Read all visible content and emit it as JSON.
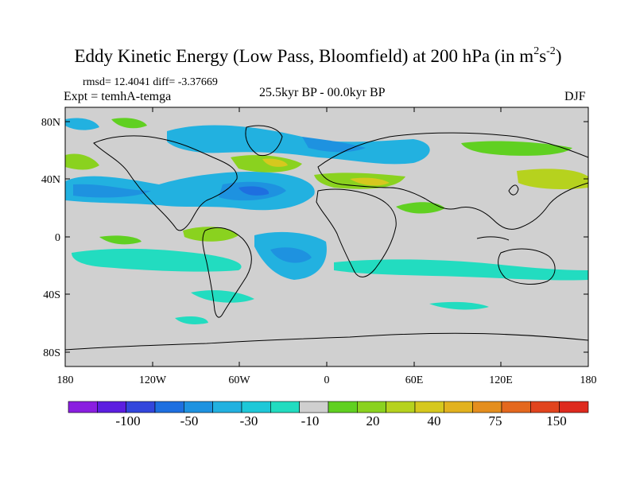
{
  "title": {
    "main": "Eddy Kinetic Energy (Low Pass, Bloomfield) at 200 hPa (in m",
    "unit_m_exp": "2",
    "unit_s": "s",
    "unit_s_exp": "-2",
    "close": ")"
  },
  "stats": "rmsd= 12.4041 diff= -3.37669",
  "experiment": "Expt = temhA-temga",
  "period": "25.5kyr BP - 00.0kyr BP",
  "season": "DJF",
  "map_data": {
    "y_axis_labels": [
      "80N",
      "40N",
      "0",
      "40S",
      "80S"
    ],
    "x_axis_labels": [
      "180",
      "120W",
      "60W",
      "0",
      "60E",
      "120E",
      "180"
    ],
    "background_color": "#d0d0d0",
    "colorbar": {
      "colors": [
        "#8a1fe0",
        "#5c1ee0",
        "#3346dc",
        "#1e6fe0",
        "#1e92e0",
        "#22b1e0",
        "#1ec8d8",
        "#22dcc0",
        "#cfcfcf",
        "#60d021",
        "#8ad21f",
        "#b6d21e",
        "#d6c81e",
        "#e2b21f",
        "#e48e1e",
        "#e4681e",
        "#e1441e",
        "#de2a1e"
      ],
      "labels": [
        "-100",
        "-50",
        "-30",
        "-10",
        "20",
        "40",
        "75",
        "150"
      ]
    },
    "regions": [
      {
        "label": "north-atlantic-negative",
        "color": "#22b1e0"
      },
      {
        "label": "north-atlantic-core",
        "color": "#1e92e0"
      },
      {
        "label": "north-pacific-negative",
        "color": "#22b1e0"
      },
      {
        "label": "north-atlantic-positive",
        "color": "#b6d21e"
      },
      {
        "label": "west-pacific-positive",
        "color": "#b6d21e"
      },
      {
        "label": "south-atlantic-negative",
        "color": "#22b1e0"
      },
      {
        "label": "tropical-atlantic-positive",
        "color": "#8ad21f"
      }
    ]
  }
}
